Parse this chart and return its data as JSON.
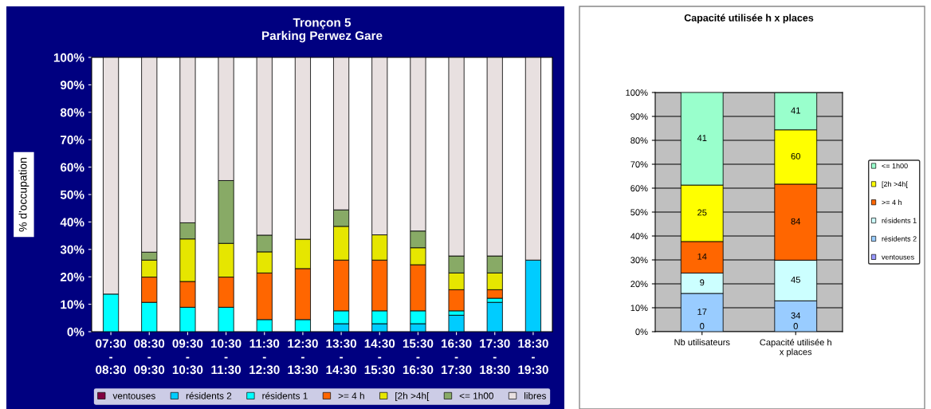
{
  "chart_data": [
    {
      "type": "bar",
      "title": "Tronçon 5\nParking Perwez Gare",
      "ylabel": "% d'occupation",
      "stacked": true,
      "categories": [
        "07:30\n-\n08:30",
        "08:30\n-\n09:30",
        "09:30\n-\n10:30",
        "10:30\n-\n11:30",
        "11:30\n-\n12:30",
        "12:30\n-\n13:30",
        "13:30\n-\n14:30",
        "14:30\n-\n15:30",
        "15:30\n-\n16:30",
        "16:30\n-\n17:30",
        "17:30\n-\n18:30",
        "18:30\n-\n19:30"
      ],
      "series": [
        {
          "name": "ventouses",
          "color": "#800040",
          "values": [
            0,
            0,
            0,
            0,
            0,
            0,
            0,
            0,
            0,
            0,
            0,
            0
          ]
        },
        {
          "name": "résidents 2",
          "color": "#00ccff",
          "values": [
            0,
            0,
            0,
            0,
            0,
            0,
            2.9,
            2.9,
            2.9,
            6.0,
            10.7,
            26.1
          ]
        },
        {
          "name": "résidents 1",
          "color": "#00ffff",
          "values": [
            13.7,
            10.7,
            8.9,
            8.9,
            4.4,
            4.4,
            4.7,
            4.7,
            4.7,
            1.6,
            1.5,
            0
          ]
        },
        {
          "name": ">= 4 h",
          "color": "#ff6600",
          "values": [
            0,
            9.2,
            9.4,
            11.0,
            17.0,
            18.6,
            18.5,
            18.5,
            16.8,
            7.7,
            3.1,
            0
          ]
        },
        {
          "name": "[2h >4h[",
          "color": "#e6e600",
          "values": [
            0,
            6.2,
            15.5,
            12.3,
            7.7,
            10.7,
            12.3,
            9.2,
            6.2,
            6.1,
            6.1,
            0
          ]
        },
        {
          "name": "<= 1h00",
          "color": "#88aa66",
          "values": [
            0,
            2.9,
            5.9,
            22.9,
            6.1,
            0,
            6.0,
            0,
            6.1,
            6.2,
            6.2,
            0
          ]
        },
        {
          "name": "libres",
          "color": "#e8e0e0",
          "values": [
            86.3,
            71.0,
            60.3,
            44.9,
            64.8,
            66.3,
            55.6,
            64.7,
            63.3,
            72.4,
            72.4,
            73.9
          ]
        }
      ],
      "ylim": [
        0,
        100
      ],
      "yticks": [
        {
          "value": 0,
          "label": "0%"
        },
        {
          "value": 10,
          "label": "10%"
        },
        {
          "value": 20,
          "label": "20%"
        },
        {
          "value": 30,
          "label": "30%"
        },
        {
          "value": 40,
          "label": "40%"
        },
        {
          "value": 50,
          "label": "50%"
        },
        {
          "value": 60,
          "label": "60%"
        },
        {
          "value": 70,
          "label": "70%"
        },
        {
          "value": 80,
          "label": "80%"
        },
        {
          "value": 90,
          "label": "90%"
        },
        {
          "value": 100,
          "label": "100%"
        }
      ],
      "grid": false,
      "legend": "bottom"
    },
    {
      "type": "bar",
      "title": "Capacité utilisée h x places",
      "stacked": true,
      "categories": [
        "Nb utilisateurs",
        "Capacité utilisée h\nx places"
      ],
      "series": [
        {
          "name": "ventouses",
          "color": "#9999ff",
          "values": [
            0,
            0
          ]
        },
        {
          "name": "résidents 2",
          "color": "#99ccff",
          "values": [
            16.0,
            12.9
          ]
        },
        {
          "name": "résidents 1",
          "color": "#ccffff",
          "values": [
            8.5,
            17.0
          ]
        },
        {
          "name": ">= 4 h",
          "color": "#ff6600",
          "values": [
            13.2,
            31.8
          ]
        },
        {
          "name": "[2h >4h[",
          "color": "#ffff00",
          "values": [
            23.6,
            22.7
          ]
        },
        {
          "name": "<= 1h00",
          "color": "#99ffcc",
          "values": [
            38.7,
            15.5
          ]
        }
      ],
      "annotations": [
        "0",
        "17",
        "9",
        "14",
        "25",
        "41",
        "0",
        "34",
        "45",
        "84",
        "60",
        "41"
      ],
      "ylim": [
        0,
        100
      ],
      "yticks": [
        {
          "value": 0,
          "label": "0%"
        },
        {
          "value": 10,
          "label": "10%"
        },
        {
          "value": 20,
          "label": "20%"
        },
        {
          "value": 30,
          "label": "30%"
        },
        {
          "value": 40,
          "label": "40%"
        },
        {
          "value": 50,
          "label": "50%"
        },
        {
          "value": 60,
          "label": "60%"
        },
        {
          "value": 70,
          "label": "70%"
        },
        {
          "value": 80,
          "label": "80%"
        },
        {
          "value": 90,
          "label": "90%"
        },
        {
          "value": 100,
          "label": "100%"
        }
      ],
      "grid": "y",
      "legend": "right"
    }
  ]
}
